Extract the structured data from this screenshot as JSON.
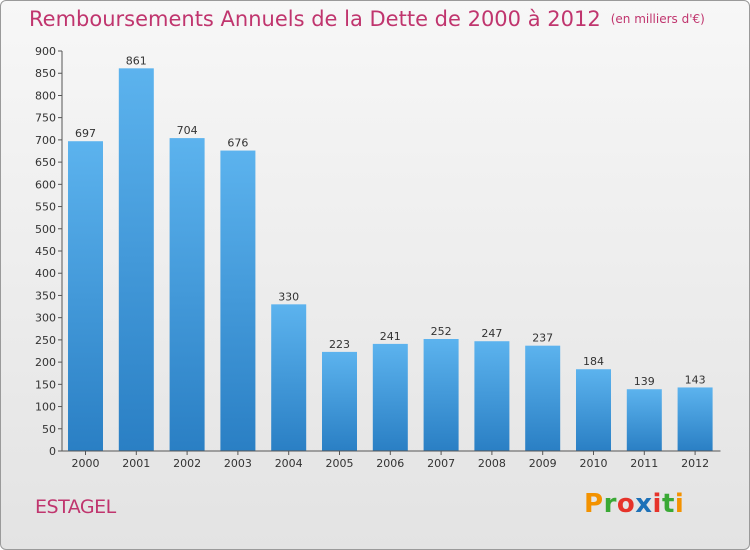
{
  "header": {
    "title": "Remboursements Annuels de la Dette de 2000 à 2012",
    "subtitle": "(en milliers d'€)"
  },
  "commune": "ESTAGEL",
  "logo": {
    "text": "Proxiti",
    "letter_colors": [
      "#f39200",
      "#3aa935",
      "#e6332a",
      "#1d71b8",
      "#e6332a",
      "#3aa935",
      "#f39200"
    ]
  },
  "colors": {
    "bar_top": "#5cb3ee",
    "bar_bottom": "#2a7fc4",
    "title": "#c0356e"
  },
  "chart_data": {
    "type": "bar",
    "title": "Remboursements Annuels de la Dette de 2000 à 2012",
    "subtitle": "(en milliers d'€)",
    "categories": [
      "2000",
      "2001",
      "2002",
      "2003",
      "2004",
      "2005",
      "2006",
      "2007",
      "2008",
      "2009",
      "2010",
      "2011",
      "2012"
    ],
    "values": [
      697,
      861,
      704,
      676,
      330,
      223,
      241,
      252,
      247,
      237,
      184,
      139,
      143
    ],
    "ylim": [
      0,
      900
    ],
    "yticks": [
      0,
      50,
      100,
      150,
      200,
      250,
      300,
      350,
      400,
      450,
      500,
      550,
      600,
      650,
      700,
      750,
      800,
      850,
      900
    ],
    "grid": false,
    "xlabel": "",
    "ylabel": ""
  }
}
